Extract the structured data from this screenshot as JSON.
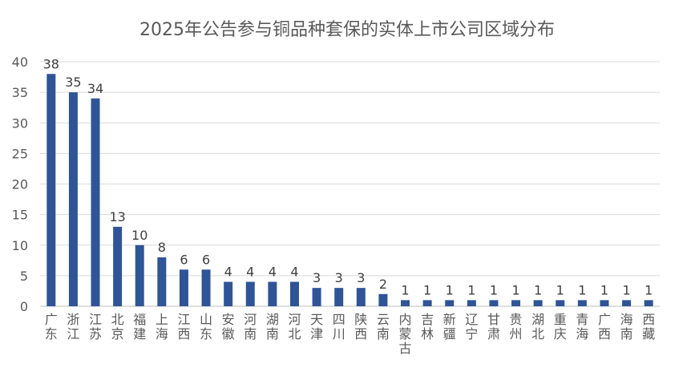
{
  "chart_data": {
    "type": "bar",
    "title": "2025年公告参与铜品种套保的实体上市公司区域分布",
    "xlabel": "",
    "ylabel": "",
    "ylim": [
      0,
      40
    ],
    "yticks": [
      0,
      5,
      10,
      15,
      20,
      25,
      30,
      35,
      40
    ],
    "grid": true,
    "legend": "none",
    "bar_color": "#2F5597",
    "categories": [
      "广东",
      "浙江",
      "江苏",
      "北京",
      "福建",
      "上海",
      "江西",
      "山东",
      "安徽",
      "河南",
      "湖南",
      "河北",
      "天津",
      "四川",
      "陕西",
      "云南",
      "内蒙古",
      "吉林",
      "新疆",
      "辽宁",
      "甘肃",
      "贵州",
      "湖北",
      "重庆",
      "青海",
      "广西",
      "海南",
      "西藏"
    ],
    "values": [
      38,
      35,
      34,
      13,
      10,
      8,
      6,
      6,
      4,
      4,
      4,
      4,
      3,
      3,
      3,
      2,
      1,
      1,
      1,
      1,
      1,
      1,
      1,
      1,
      1,
      1,
      1,
      1
    ]
  }
}
